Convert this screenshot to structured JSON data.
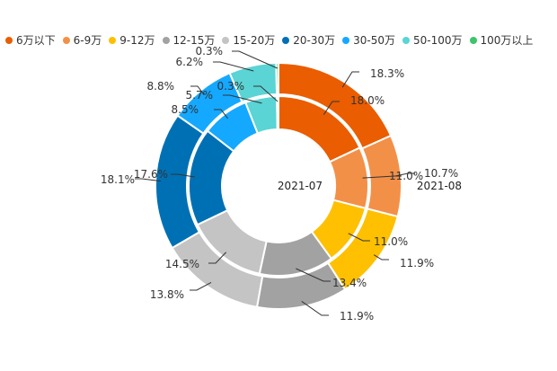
{
  "chart_data": {
    "type": "pie",
    "subtype": "nested-donut",
    "legend_position": "top-left",
    "categories": [
      "6万以下",
      "6-9万",
      "9-12万",
      "12-15万",
      "15-20万",
      "20-30万",
      "30-50万",
      "50-100万",
      "100万以上"
    ],
    "colors": [
      "#ea5d00",
      "#f39048",
      "#fec000",
      "#a2a2a2",
      "#c4c4c4",
      "#0070b5",
      "#15a8ff",
      "#5ad4d4",
      "#3ec46b"
    ],
    "series": [
      {
        "name": "2021-07",
        "ring": "inner",
        "values": [
          18.0,
          11.0,
          11.0,
          13.4,
          14.5,
          17.6,
          8.5,
          5.7,
          0.3
        ],
        "labels": [
          "18.0%",
          "11.0%",
          "11.0%",
          "13.4%",
          "14.5%",
          "17.6%",
          "8.5%",
          "5.7%",
          "0.3%"
        ]
      },
      {
        "name": "2021-08",
        "ring": "outer",
        "values": [
          18.3,
          10.7,
          11.9,
          11.9,
          13.8,
          18.1,
          8.8,
          6.2,
          0.3
        ],
        "labels": [
          "18.3%",
          "10.7%",
          "11.9%",
          "11.9%",
          "13.8%",
          "18.1%",
          "8.8%",
          "6.2%",
          "0.3%"
        ]
      }
    ]
  }
}
